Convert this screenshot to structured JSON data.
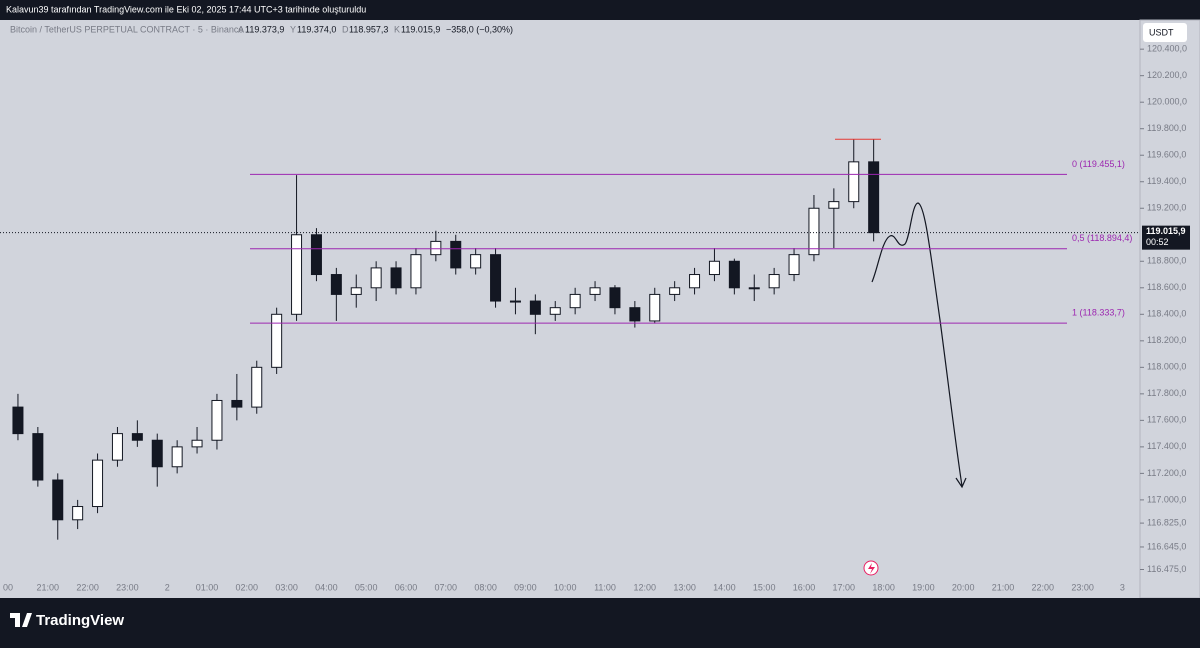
{
  "header": {
    "text": "Kalavun39 tarafından TradingView.com ile Eki 02, 2025 17:44 UTC+3 tarihinde oluşturuldu"
  },
  "chart_data": {
    "type": "candlestick",
    "symbol": "Bitcoin / TetherUS PERPETUAL CONTRACT · 5 · Binance",
    "ohlc_legend": [
      {
        "key": "A",
        "value": "119.373,9"
      },
      {
        "key": "Y",
        "value": "119.374,0"
      },
      {
        "key": "D",
        "value": "118.957,3"
      },
      {
        "key": "K",
        "value": "119.015,9"
      }
    ],
    "change": "−358,0 (−0,30%)",
    "currency": "USDT",
    "open": [
      117700,
      117500,
      117150,
      116850,
      116950,
      117300,
      117500,
      117450,
      117250,
      117400,
      117450,
      117750,
      117700,
      118000,
      118400,
      119000,
      118700,
      118550,
      118600,
      118750,
      118600,
      118850,
      118950,
      118750,
      118850,
      118500,
      118500,
      118400,
      118450,
      118550,
      118600,
      118450,
      118350,
      118550,
      118600,
      118700,
      118800,
      118600,
      118600,
      118700,
      118850,
      119200,
      119250,
      119550
    ],
    "high": [
      117800,
      117550,
      117200,
      117000,
      117350,
      117550,
      117600,
      117500,
      117450,
      117550,
      117800,
      117950,
      118050,
      118450,
      119450,
      119050,
      118750,
      118700,
      118800,
      118800,
      118900,
      119030,
      119000,
      118900,
      118900,
      118600,
      118550,
      118500,
      118600,
      118650,
      118620,
      118500,
      118600,
      118650,
      118750,
      118900,
      118820,
      118700,
      118750,
      118900,
      119300,
      119350,
      119720,
      119720
    ],
    "low": [
      117450,
      117100,
      116700,
      116780,
      116900,
      117250,
      117400,
      117100,
      117200,
      117350,
      117380,
      117600,
      117650,
      117950,
      118350,
      118650,
      118350,
      118450,
      118500,
      118550,
      118550,
      118800,
      118700,
      118700,
      118450,
      118400,
      118250,
      118350,
      118400,
      118500,
      118400,
      118300,
      118330,
      118500,
      118550,
      118650,
      118550,
      118500,
      118550,
      118650,
      118800,
      118900,
      119200,
      118950
    ],
    "close": [
      117500,
      117150,
      116850,
      116950,
      117300,
      117500,
      117450,
      117250,
      117400,
      117450,
      117750,
      117700,
      118000,
      118400,
      119000,
      118700,
      118550,
      118600,
      118750,
      118600,
      118850,
      118950,
      118750,
      118850,
      118500,
      118500,
      118400,
      118450,
      118550,
      118600,
      118450,
      118350,
      118550,
      118600,
      118700,
      118800,
      118600,
      118600,
      118700,
      118850,
      119200,
      119250,
      119550,
      119015.9
    ],
    "ylim": [
      116260,
      120620
    ],
    "yticks": [
      {
        "value": 120400,
        "label": "120.400,0"
      },
      {
        "value": 120200,
        "label": "120.200,0"
      },
      {
        "value": 120000,
        "label": "120.000,0"
      },
      {
        "value": 119800,
        "label": "119.800,0"
      },
      {
        "value": 119600,
        "label": "119.600,0"
      },
      {
        "value": 119400,
        "label": "119.400,0"
      },
      {
        "value": 119200,
        "label": "119.200,0"
      },
      {
        "value": 118800,
        "label": "118.800,0"
      },
      {
        "value": 118600,
        "label": "118.600,0"
      },
      {
        "value": 118400,
        "label": "118.400,0"
      },
      {
        "value": 118200,
        "label": "118.200,0"
      },
      {
        "value": 118000,
        "label": "118.000,0"
      },
      {
        "value": 117800,
        "label": "117.800,0"
      },
      {
        "value": 117600,
        "label": "117.600,0"
      },
      {
        "value": 117400,
        "label": "117.400,0"
      },
      {
        "value": 117200,
        "label": "117.200,0"
      },
      {
        "value": 117000,
        "label": "117.000,0"
      },
      {
        "value": 116825,
        "label": "116.825,0"
      },
      {
        "value": 116645,
        "label": "116.645,0"
      },
      {
        "value": 116475,
        "label": "116.475,0"
      }
    ],
    "x_labels": [
      "00",
      "21:00",
      "22:00",
      "23:00",
      "2",
      "01:00",
      "02:00",
      "03:00",
      "04:00",
      "05:00",
      "06:00",
      "07:00",
      "08:00",
      "09:00",
      "10:00",
      "11:00",
      "12:00",
      "13:00",
      "14:00",
      "15:00",
      "16:00",
      "17:00",
      "18:00",
      "19:00",
      "20:00",
      "21:00",
      "22:00",
      "23:00",
      "3"
    ],
    "levels": [
      {
        "value": 119455.1,
        "label": "0 (119.455,1)"
      },
      {
        "value": 118894.4,
        "label": "0,5 (118.894,4)"
      },
      {
        "value": 118333.7,
        "label": "1 (118.333,7)"
      }
    ],
    "resistance": 119720,
    "last_price": {
      "value": 119015.9,
      "label": "119.015,9",
      "countdown": "00:52"
    },
    "colors": {
      "up": "#ffffff",
      "down": "#131722",
      "level": "#9c27b0",
      "resistance": "#e53935"
    }
  },
  "footer": {
    "brand": "TradingView"
  }
}
